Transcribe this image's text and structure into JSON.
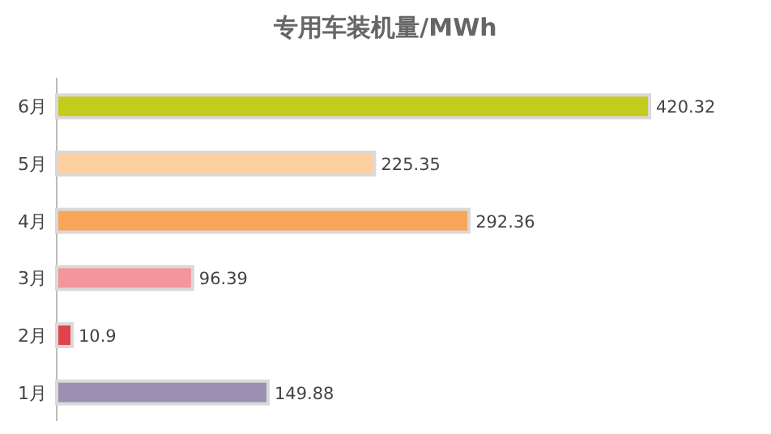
{
  "chart_data": {
    "type": "bar",
    "orientation": "horizontal",
    "title": "专用车装机量/MWh",
    "categories": [
      "6月",
      "5月",
      "4月",
      "3月",
      "2月",
      "1月"
    ],
    "values": [
      420.32,
      225.35,
      292.36,
      96.39,
      10.9,
      149.88
    ],
    "colors": [
      "#c3cb1c",
      "#fdd0a2",
      "#f8a65a",
      "#f4949b",
      "#e0434e",
      "#9c90b2"
    ],
    "data_labels": true
  }
}
